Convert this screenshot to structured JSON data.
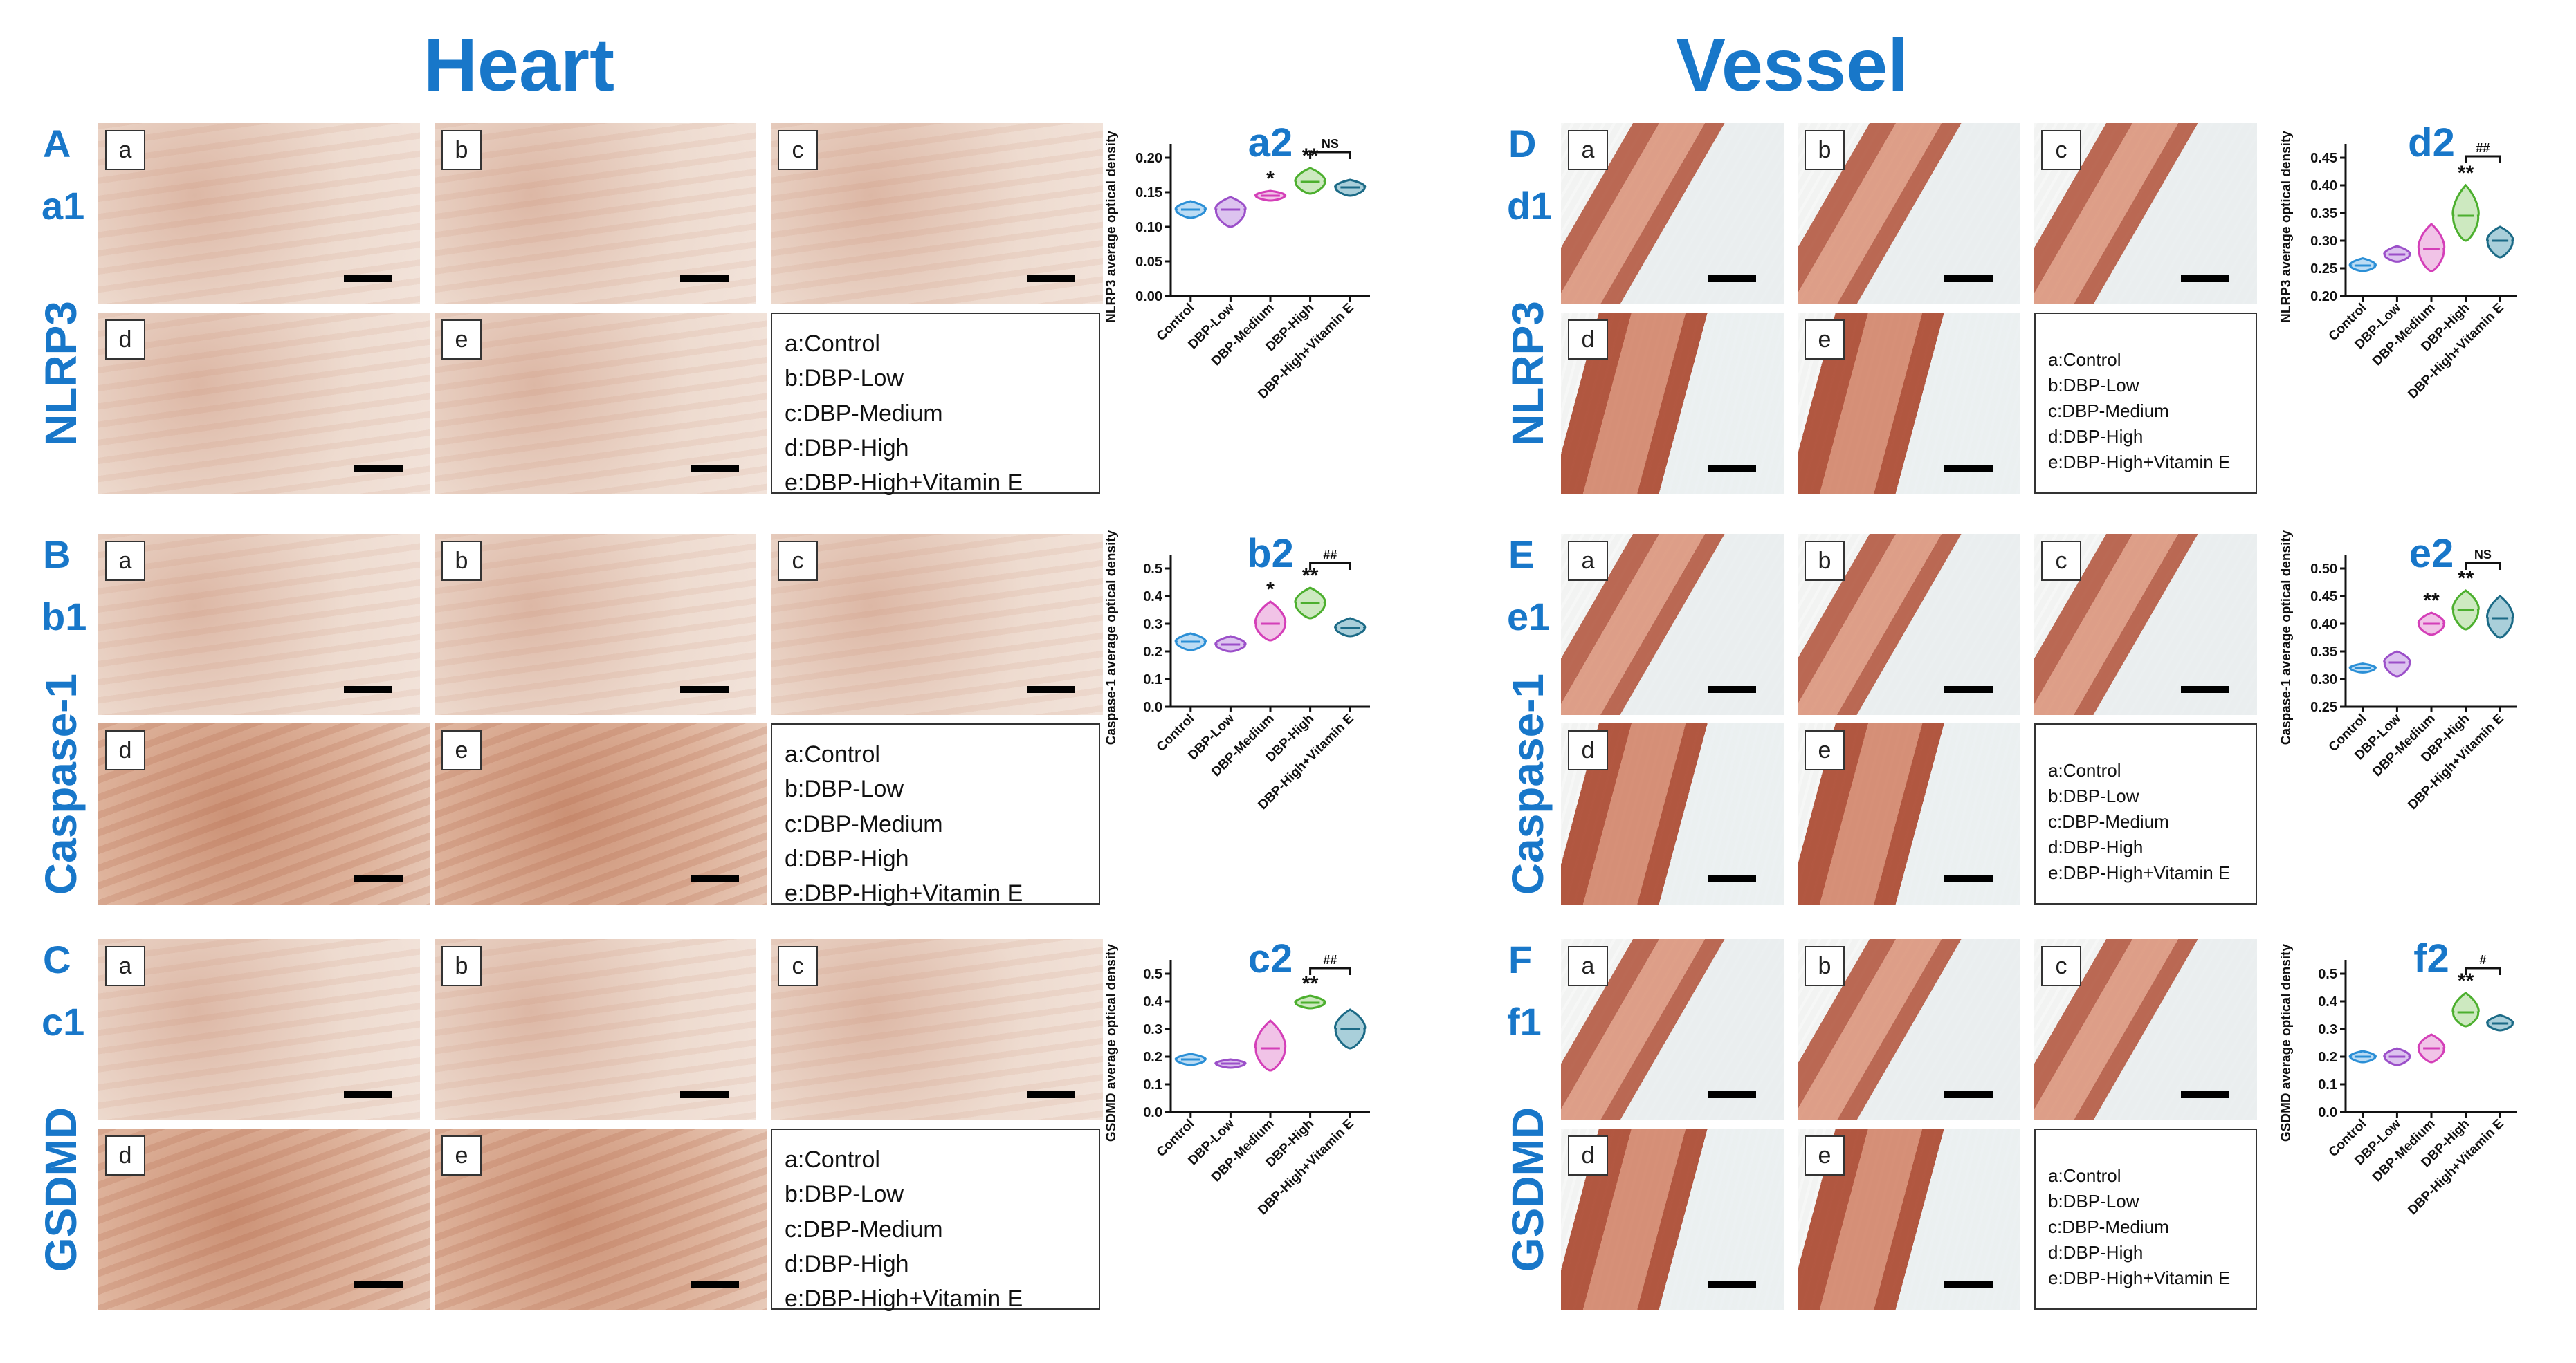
{
  "titles": {
    "heart": "Heart",
    "vessel": "Vessel"
  },
  "legend_items": [
    "a:Control",
    "b:DBP-Low",
    "c:DBP-Medium",
    "d:DBP-High",
    "e:DBP-High+Vitamin E"
  ],
  "image_labels": [
    "a",
    "b",
    "c",
    "d",
    "e"
  ],
  "colors": {
    "title_blue": "#1877c9",
    "groups": [
      "#2b8fd6",
      "#9b4fc9",
      "#d43fb8",
      "#4caf2e",
      "#1b6a86"
    ],
    "groups_fill": [
      "#bcdcf4",
      "#dcc3ef",
      "#f1c3e7",
      "#cde9c0",
      "#a9cfda"
    ]
  },
  "panels": [
    {
      "id": "A",
      "sub": "a1",
      "marker": "NLRP3",
      "section": "heart"
    },
    {
      "id": "B",
      "sub": "b1",
      "marker": "Caspase-1",
      "section": "heart"
    },
    {
      "id": "C",
      "sub": "c1",
      "marker": "GSDMD",
      "section": "heart"
    },
    {
      "id": "D",
      "sub": "d1",
      "marker": "NLRP3",
      "section": "vessel"
    },
    {
      "id": "E",
      "sub": "e1",
      "marker": "Caspase-1",
      "section": "vessel"
    },
    {
      "id": "F",
      "sub": "f1",
      "marker": "GSDMD",
      "section": "vessel"
    }
  ],
  "chart_data": [
    {
      "type": "violin",
      "title": "a2",
      "ylabel": "NLRP3 average optical density",
      "categories": [
        "Control",
        "DBP-Low",
        "DBP-Medium",
        "DBP-High",
        "DBP-High+Vitamin E"
      ],
      "ylim": [
        0.0,
        0.2
      ],
      "yticks": [
        "0.00",
        "0.05",
        "0.10",
        "0.15",
        "0.20"
      ],
      "median": [
        0.125,
        0.125,
        0.145,
        0.165,
        0.157
      ],
      "min": [
        0.113,
        0.1,
        0.138,
        0.148,
        0.145
      ],
      "max": [
        0.137,
        0.143,
        0.152,
        0.185,
        0.168
      ],
      "annotations": [
        "",
        "",
        "*",
        "**",
        ""
      ],
      "bracket": {
        "from": 3,
        "to": 4,
        "label": "NS"
      }
    },
    {
      "type": "violin",
      "title": "b2",
      "ylabel": "Caspase-1 average optical density",
      "categories": [
        "Control",
        "DBP-Low",
        "DBP-Medium",
        "DBP-High",
        "DBP-High+Vitamin E"
      ],
      "ylim": [
        0.0,
        0.5
      ],
      "yticks": [
        "0.0",
        "0.1",
        "0.2",
        "0.3",
        "0.4",
        "0.5"
      ],
      "median": [
        0.235,
        0.225,
        0.3,
        0.375,
        0.285
      ],
      "min": [
        0.205,
        0.2,
        0.24,
        0.32,
        0.255
      ],
      "max": [
        0.265,
        0.255,
        0.38,
        0.43,
        0.32
      ],
      "annotations": [
        "",
        "",
        "*",
        "**",
        ""
      ],
      "bracket": {
        "from": 3,
        "to": 4,
        "label": "##"
      }
    },
    {
      "type": "violin",
      "title": "c2",
      "ylabel": "GSDMD average optical density",
      "categories": [
        "Control",
        "DBP-Low",
        "DBP-Medium",
        "DBP-High",
        "DBP-High+Vitamin E"
      ],
      "ylim": [
        0.0,
        0.5
      ],
      "yticks": [
        "0.0",
        "0.1",
        "0.2",
        "0.3",
        "0.4",
        "0.5"
      ],
      "median": [
        0.19,
        0.175,
        0.23,
        0.395,
        0.3
      ],
      "min": [
        0.17,
        0.16,
        0.15,
        0.375,
        0.23
      ],
      "max": [
        0.21,
        0.19,
        0.33,
        0.42,
        0.37
      ],
      "annotations": [
        "",
        "",
        "",
        "**",
        ""
      ],
      "bracket": {
        "from": 3,
        "to": 4,
        "label": "##"
      }
    },
    {
      "type": "violin",
      "title": "d2",
      "ylabel": "NLRP3 average optical density",
      "categories": [
        "Control",
        "DBP-Low",
        "DBP-Medium",
        "DBP-High",
        "DBP-High+Vitamin E"
      ],
      "ylim": [
        0.2,
        0.45
      ],
      "yticks": [
        "0.20",
        "0.25",
        "0.30",
        "0.35",
        "0.40",
        "0.45"
      ],
      "median": [
        0.255,
        0.275,
        0.285,
        0.345,
        0.3
      ],
      "min": [
        0.245,
        0.262,
        0.245,
        0.3,
        0.27
      ],
      "max": [
        0.268,
        0.29,
        0.33,
        0.4,
        0.325
      ],
      "annotations": [
        "",
        "",
        "",
        "**",
        ""
      ],
      "bracket": {
        "from": 3,
        "to": 4,
        "label": "##"
      }
    },
    {
      "type": "violin",
      "title": "e2",
      "ylabel": "Caspase-1 average optical density",
      "categories": [
        "Control",
        "DBP-Low",
        "DBP-Medium",
        "DBP-High",
        "DBP-High+Vitamin E"
      ],
      "ylim": [
        0.25,
        0.5
      ],
      "yticks": [
        "0.25",
        "0.30",
        "0.35",
        "0.40",
        "0.45",
        "0.50"
      ],
      "median": [
        0.32,
        0.33,
        0.4,
        0.425,
        0.41
      ],
      "min": [
        0.312,
        0.305,
        0.38,
        0.39,
        0.375
      ],
      "max": [
        0.328,
        0.35,
        0.42,
        0.46,
        0.45
      ],
      "annotations": [
        "",
        "",
        "**",
        "**",
        ""
      ],
      "bracket": {
        "from": 3,
        "to": 4,
        "label": "NS"
      }
    },
    {
      "type": "violin",
      "title": "f2",
      "ylabel": "GSDMD average optical density",
      "categories": [
        "Control",
        "DBP-Low",
        "DBP-Medium",
        "DBP-High",
        "DBP-High+Vitamin E"
      ],
      "ylim": [
        0.0,
        0.5
      ],
      "yticks": [
        "0.0",
        "0.1",
        "0.2",
        "0.3",
        "0.4",
        "0.5"
      ],
      "median": [
        0.2,
        0.2,
        0.23,
        0.36,
        0.32
      ],
      "min": [
        0.18,
        0.17,
        0.18,
        0.31,
        0.295
      ],
      "max": [
        0.22,
        0.23,
        0.28,
        0.43,
        0.35
      ],
      "annotations": [
        "",
        "",
        "",
        "**",
        ""
      ],
      "bracket": {
        "from": 3,
        "to": 4,
        "label": "#"
      }
    }
  ]
}
